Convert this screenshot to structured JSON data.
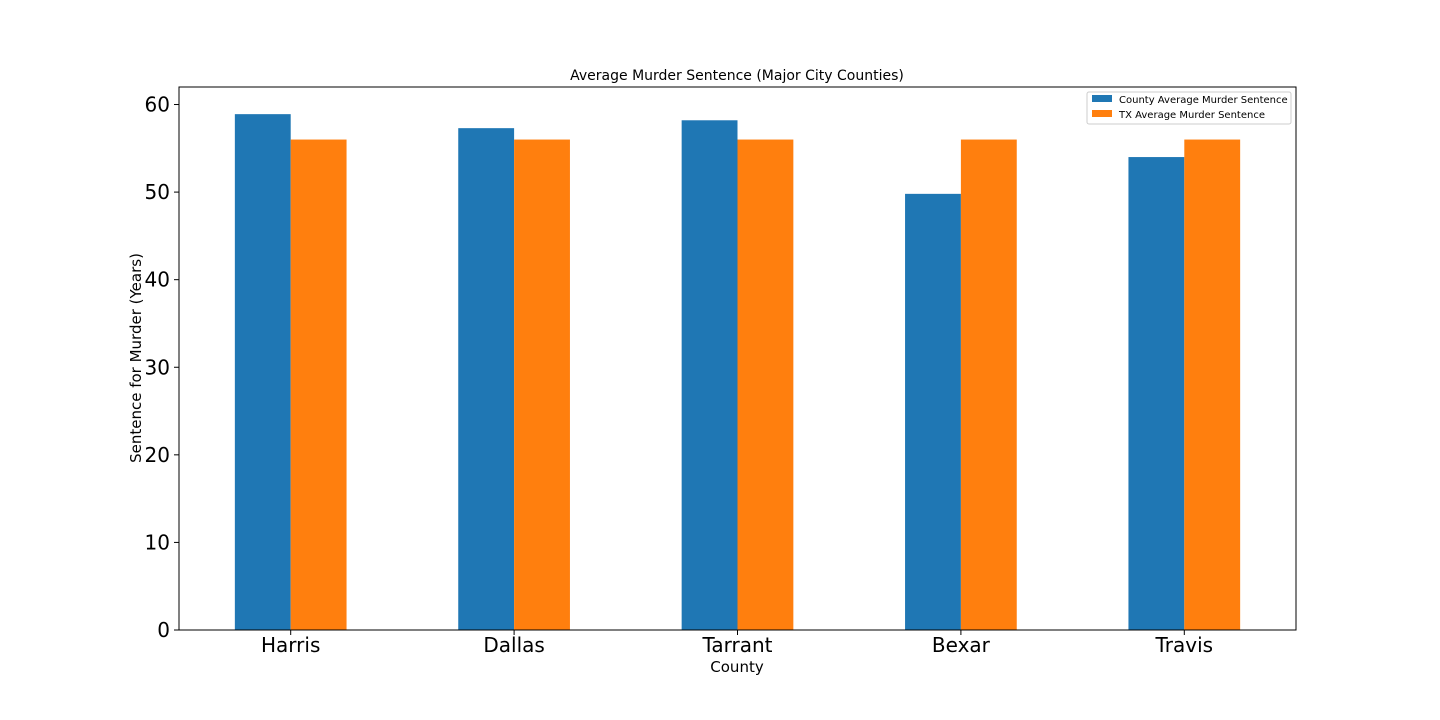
{
  "chart_data": {
    "type": "bar",
    "title": "Average Murder Sentence (Major City Counties)",
    "xlabel": "County",
    "ylabel": "Sentence for Murder (Years)",
    "categories": [
      "Harris",
      "Dallas",
      "Tarrant",
      "Bexar",
      "Travis"
    ],
    "series": [
      {
        "name": "County Average Murder Sentence",
        "color": "#1f77b4",
        "values": [
          58.9,
          57.3,
          58.2,
          49.8,
          54.0
        ]
      },
      {
        "name": "TX Average Murder Sentence",
        "color": "#ff7f0e",
        "values": [
          56.0,
          56.0,
          56.0,
          56.0,
          56.0
        ]
      }
    ],
    "ylim": [
      0,
      62
    ],
    "yticks": [
      0,
      10,
      20,
      30,
      40,
      50,
      60
    ],
    "grid": false,
    "legend_position": "top-right"
  }
}
